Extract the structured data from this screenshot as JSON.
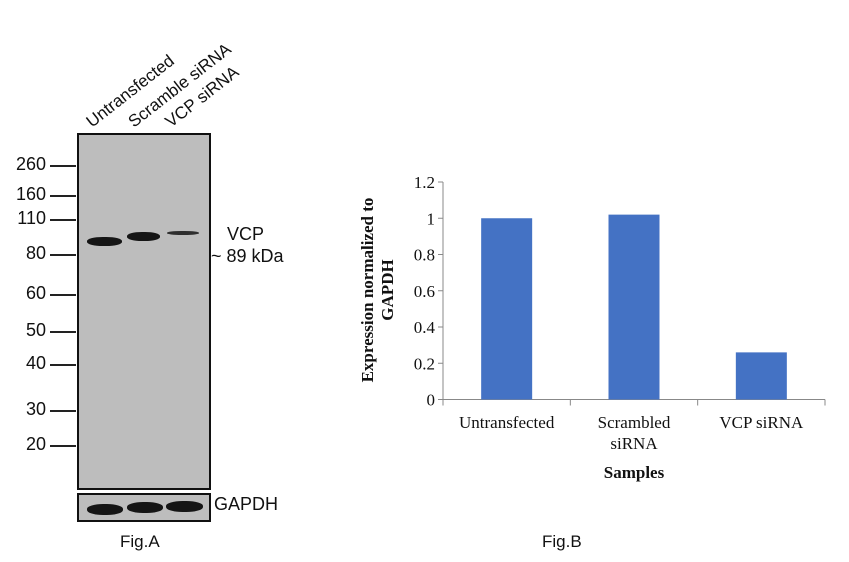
{
  "figA": {
    "caption": "Fig.A",
    "lanes": [
      "Untransfected",
      "Scramble siRNA",
      "VCP siRNA"
    ],
    "markers": [
      "260",
      "160",
      "110",
      "80",
      "60",
      "50",
      "40",
      "30",
      "20"
    ],
    "target_label": "VCP",
    "target_size": "~ 89 kDa",
    "loading_control": "GAPDH"
  },
  "figB": {
    "caption": "Fig.B"
  },
  "chart_data": {
    "type": "bar",
    "categories": [
      "Untransfected",
      "Scrambled siRNA",
      "VCP siRNA"
    ],
    "values": [
      1.0,
      1.02,
      0.26
    ],
    "xlabel": "Samples",
    "ylabel": "Expression normalized to GAPDH",
    "ylim": [
      0,
      1.2
    ],
    "yticks": [
      "0",
      "0.2",
      "0.4",
      "0.6",
      "0.8",
      "1",
      "1.2"
    ],
    "grid": false,
    "bar_color": "#4472c4"
  }
}
